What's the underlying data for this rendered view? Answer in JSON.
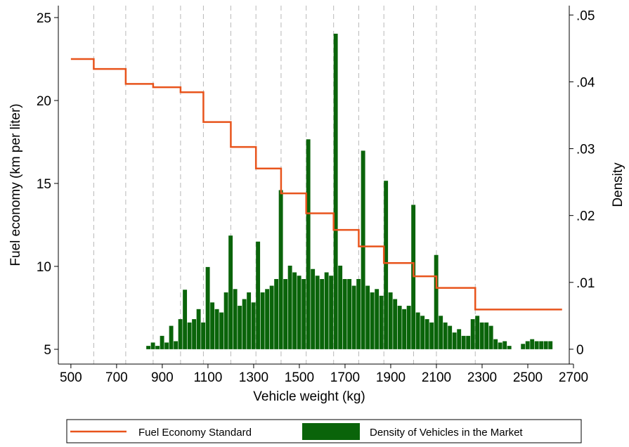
{
  "chart_data": [
    {
      "type": "line",
      "drawstyle": "steps-post",
      "xlabel": "Vehicle weight (kg)",
      "ylabel": "Fuel economy (km per liter)",
      "y2label": "Density",
      "xlim": [
        445,
        2700
      ],
      "xticks": [
        500,
        700,
        900,
        1100,
        1300,
        1500,
        1700,
        1900,
        2100,
        2300,
        2500,
        2700
      ],
      "ylim": [
        4.11,
        25.72
      ],
      "yticks": [
        5,
        10,
        15,
        20,
        25
      ],
      "y2lim": [
        -0.00222,
        0.0514
      ],
      "y2ticks": [
        0,
        {
          "value": 0.01,
          "label": ".01"
        },
        {
          "value": 0.02,
          "label": ".02"
        },
        {
          "value": 0.03,
          "label": ".03"
        },
        {
          "value": 0.04,
          "label": ".04"
        },
        {
          "value": 0.05,
          "label": ".05"
        }
      ],
      "reference_lines": "dashed",
      "legend": "bottom",
      "x": [
        500,
        600,
        740,
        860,
        980,
        1080,
        1200,
        1310,
        1420,
        1530,
        1650,
        1760,
        1870,
        2000,
        2100,
        2270,
        2650
      ],
      "series": [
        {
          "name": "Fuel Economy Standard",
          "color": "#e8541c",
          "values": [
            22.5,
            21.9,
            21.0,
            20.8,
            20.5,
            18.7,
            17.2,
            15.9,
            14.4,
            13.2,
            12.2,
            11.2,
            10.2,
            9.4,
            8.7,
            7.4,
            7.4
          ]
        }
      ]
    },
    {
      "type": "histogram",
      "axis": "y2",
      "name": "Density of Vehicles in the Market",
      "color": "#0a640a",
      "bins": [
        830,
        850,
        870,
        890,
        910,
        930,
        950,
        970,
        990,
        1010,
        1030,
        1050,
        1070,
        1090,
        1110,
        1130,
        1150,
        1170,
        1190,
        1210,
        1230,
        1250,
        1270,
        1290,
        1310,
        1330,
        1350,
        1370,
        1390,
        1410,
        1430,
        1450,
        1470,
        1490,
        1510,
        1530,
        1550,
        1570,
        1590,
        1610,
        1630,
        1650,
        1670,
        1690,
        1710,
        1730,
        1750,
        1770,
        1790,
        1810,
        1830,
        1850,
        1870,
        1890,
        1910,
        1930,
        1950,
        1970,
        1990,
        2010,
        2030,
        2050,
        2070,
        2090,
        2110,
        2130,
        2150,
        2170,
        2190,
        2210,
        2230,
        2250,
        2270,
        2290,
        2310,
        2330,
        2350,
        2370,
        2390,
        2410,
        2430,
        2450,
        2470,
        2490,
        2510,
        2530,
        2550,
        2570,
        2590,
        2610
      ],
      "values": [
        0.0005,
        0.001,
        0.0005,
        0.002,
        0.001,
        0.0035,
        0.0012,
        0.0045,
        0.0089,
        0.004,
        0.0045,
        0.006,
        0.004,
        0.0123,
        0.007,
        0.006,
        0.0055,
        0.0085,
        0.017,
        0.009,
        0.0065,
        0.0075,
        0.0085,
        0.007,
        0.0161,
        0.0085,
        0.009,
        0.0095,
        0.0105,
        0.0238,
        0.0105,
        0.0125,
        0.0115,
        0.011,
        0.0105,
        0.0314,
        0.012,
        0.011,
        0.0105,
        0.0115,
        0.011,
        0.0472,
        0.0125,
        0.0105,
        0.0105,
        0.0095,
        0.0105,
        0.0297,
        0.0095,
        0.0085,
        0.009,
        0.008,
        0.0252,
        0.0085,
        0.0075,
        0.0065,
        0.006,
        0.0065,
        0.0216,
        0.0055,
        0.005,
        0.0045,
        0.004,
        0.0141,
        0.005,
        0.004,
        0.0035,
        0.0025,
        0.003,
        0.002,
        0.002,
        0.0045,
        0.005,
        0.004,
        0.004,
        0.0035,
        0.0015,
        0.001,
        0.0012,
        0.0005,
        0,
        0,
        0.0008,
        0.0012,
        0.0015,
        0.0012,
        0.0012,
        0.0012,
        0.0012
      ]
    }
  ]
}
